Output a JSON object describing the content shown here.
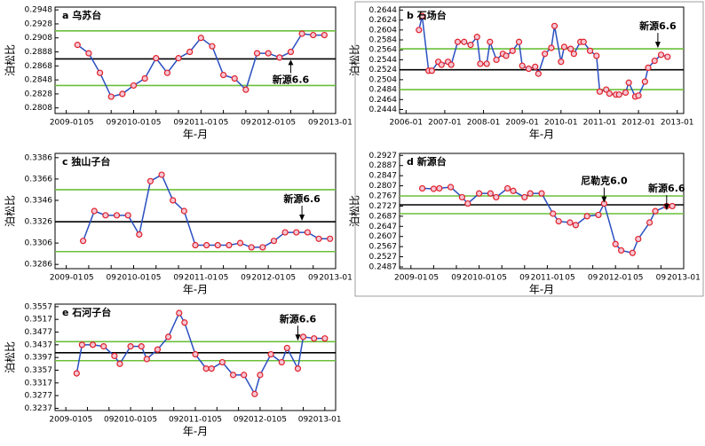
{
  "chart_data": [
    {
      "type": "line",
      "title": "a 乌苏台",
      "ylabel": "泊松比",
      "xlabel": "年-月",
      "x": [
        2,
        4,
        6,
        8,
        10,
        12,
        14,
        16,
        18,
        20,
        22,
        24,
        26,
        28,
        30,
        32,
        34,
        36,
        38,
        40,
        42,
        44,
        46
      ],
      "values": [
        0.2898,
        0.2886,
        0.2858,
        0.2824,
        0.2828,
        0.284,
        0.285,
        0.2879,
        0.2858,
        0.2879,
        0.2888,
        0.2908,
        0.2896,
        0.2855,
        0.285,
        0.2834,
        0.2886,
        0.2886,
        0.288,
        0.2888,
        0.2914,
        0.2912,
        0.2912
      ],
      "xlim": [
        -2,
        48
      ],
      "ylim": [
        0.28,
        0.2952
      ],
      "xticks": [
        {
          "value": 0,
          "label": "2009-01"
        },
        {
          "value": 4,
          "label": "05"
        },
        {
          "value": 8,
          "label": "09"
        },
        {
          "value": 12,
          "label": "2010-01"
        },
        {
          "value": 16,
          "label": "05"
        },
        {
          "value": 20,
          "label": "09"
        },
        {
          "value": 24,
          "label": "2011-01"
        },
        {
          "value": 28,
          "label": "05"
        },
        {
          "value": 32,
          "label": "09"
        },
        {
          "value": 36,
          "label": "2012-01"
        },
        {
          "value": 40,
          "label": "05"
        },
        {
          "value": 44,
          "label": "09"
        },
        {
          "value": 48,
          "label": "2013-01"
        }
      ],
      "yticks": [
        0.2808,
        0.2828,
        0.2848,
        0.2868,
        0.2888,
        0.2908,
        0.2928,
        0.2948
      ],
      "color": "#2a4fc0",
      "marker_color": "#e0202a",
      "hlines": [
        {
          "value": 0.2878,
          "color": "#000000"
        },
        {
          "value": 0.2918,
          "color": "#6cbf3a"
        },
        {
          "value": 0.284,
          "color": "#6cbf3a"
        }
      ],
      "annotations": [
        {
          "text": "新源6.6",
          "x": 40,
          "y": 0.2878,
          "position": "below"
        }
      ]
    },
    {
      "type": "line",
      "title": "b 石场台",
      "ylabel": "泊松比",
      "xlabel": "年-月",
      "x": [
        4,
        5,
        7,
        8,
        10,
        11,
        13,
        14,
        16,
        18,
        20,
        22,
        23,
        25,
        26,
        28,
        30,
        31,
        33,
        35,
        36,
        38,
        40,
        41,
        43,
        45,
        46,
        48,
        49,
        51,
        52,
        54,
        55,
        57,
        59,
        60,
        62,
        63,
        65,
        66,
        68,
        69,
        71,
        72,
        74,
        75,
        77,
        79,
        81
      ],
      "values": [
        0.2604,
        0.2632,
        0.2522,
        0.2522,
        0.254,
        0.2534,
        0.254,
        0.2534,
        0.258,
        0.258,
        0.2574,
        0.259,
        0.2536,
        0.2536,
        0.258,
        0.2544,
        0.2556,
        0.2552,
        0.2562,
        0.258,
        0.2532,
        0.2526,
        0.253,
        0.2516,
        0.2556,
        0.2568,
        0.2612,
        0.254,
        0.257,
        0.2566,
        0.2556,
        0.258,
        0.258,
        0.2562,
        0.2552,
        0.248,
        0.2484,
        0.2476,
        0.2474,
        0.2474,
        0.2478,
        0.2498,
        0.247,
        0.2472,
        0.25,
        0.2528,
        0.2542,
        0.2554,
        0.255
      ],
      "xlim": [
        -2,
        86
      ],
      "ylim": [
        0.2436,
        0.265
      ],
      "xticks": [
        {
          "value": 0,
          "label": "2006-01"
        },
        {
          "value": 12,
          "label": "2007-01"
        },
        {
          "value": 24,
          "label": "2008-01"
        },
        {
          "value": 36,
          "label": "2009-01"
        },
        {
          "value": 48,
          "label": "2010-01"
        },
        {
          "value": 60,
          "label": "2011-01"
        },
        {
          "value": 72,
          "label": "2012-01"
        },
        {
          "value": 84,
          "label": "2013-01"
        }
      ],
      "yticks": [
        0.2444,
        0.2464,
        0.2484,
        0.2504,
        0.2524,
        0.2544,
        0.2564,
        0.2584,
        0.2604,
        0.2624,
        0.2644
      ],
      "color": "#2a4fc0",
      "marker_color": "#e0202a",
      "hlines": [
        {
          "value": 0.2524,
          "color": "#000000"
        },
        {
          "value": 0.2566,
          "color": "#6cbf3a"
        },
        {
          "value": 0.2484,
          "color": "#6cbf3a"
        }
      ],
      "annotations": [
        {
          "text": "新源6.6",
          "x": 78,
          "y": 0.2566,
          "position": "above"
        }
      ]
    },
    {
      "type": "line",
      "title": "c 独山子台",
      "ylabel": "泊松比",
      "xlabel": "年-月",
      "x": [
        3,
        5,
        7,
        9,
        11,
        13,
        15,
        17,
        19,
        21,
        23,
        25,
        27,
        29,
        31,
        33,
        35,
        37,
        39,
        41,
        43,
        45,
        47
      ],
      "values": [
        0.3308,
        0.3336,
        0.3332,
        0.3332,
        0.3332,
        0.3314,
        0.3364,
        0.337,
        0.3346,
        0.3336,
        0.3304,
        0.3304,
        0.3304,
        0.3304,
        0.3306,
        0.3302,
        0.3302,
        0.3308,
        0.3316,
        0.3316,
        0.3316,
        0.331,
        0.331
      ],
      "xlim": [
        -2,
        48
      ],
      "ylim": [
        0.3282,
        0.339
      ],
      "xticks": [
        {
          "value": 0,
          "label": "2009-01"
        },
        {
          "value": 4,
          "label": "05"
        },
        {
          "value": 8,
          "label": "09"
        },
        {
          "value": 12,
          "label": "2010-01"
        },
        {
          "value": 16,
          "label": "05"
        },
        {
          "value": 20,
          "label": "09"
        },
        {
          "value": 24,
          "label": "2011-01"
        },
        {
          "value": 28,
          "label": "05"
        },
        {
          "value": 32,
          "label": "09"
        },
        {
          "value": 36,
          "label": "2012-01"
        },
        {
          "value": 40,
          "label": "05"
        },
        {
          "value": 44,
          "label": "09"
        },
        {
          "value": 48,
          "label": "2013-01"
        }
      ],
      "yticks": [
        0.3286,
        0.3306,
        0.3326,
        0.3346,
        0.3366,
        0.3386
      ],
      "color": "#2a4fc0",
      "marker_color": "#e0202a",
      "hlines": [
        {
          "value": 0.3326,
          "color": "#000000"
        },
        {
          "value": 0.3356,
          "color": "#6cbf3a"
        },
        {
          "value": 0.3298,
          "color": "#6cbf3a"
        }
      ],
      "annotations": [
        {
          "text": "新源6.6",
          "x": 42,
          "y": 0.3326,
          "position": "above"
        }
      ]
    },
    {
      "type": "line",
      "title": "d 新源台",
      "ylabel": "泊松比",
      "xlabel": "年-月",
      "x": [
        2,
        4,
        5,
        7,
        9,
        10,
        12,
        14,
        15,
        17,
        18,
        20,
        21,
        23,
        25,
        26,
        28,
        29,
        31,
        33,
        34,
        36,
        37,
        39,
        40,
        42,
        43,
        45,
        46
      ],
      "values": [
        0.2797,
        0.2795,
        0.2797,
        0.2802,
        0.2762,
        0.2737,
        0.2777,
        0.2777,
        0.2762,
        0.2797,
        0.2787,
        0.2762,
        0.2777,
        0.2777,
        0.2697,
        0.2667,
        0.2662,
        0.2652,
        0.2687,
        0.2692,
        0.2737,
        0.2577,
        0.2552,
        0.2542,
        0.2597,
        0.2662,
        0.2707,
        0.2727,
        0.2727
      ],
      "xlim": [
        -2,
        48
      ],
      "ylim": [
        0.248,
        0.2935
      ],
      "xticks": [
        {
          "value": 0,
          "label": "2009-01"
        },
        {
          "value": 4,
          "label": "05"
        },
        {
          "value": 8,
          "label": "09"
        },
        {
          "value": 12,
          "label": "2010-01"
        },
        {
          "value": 16,
          "label": "05"
        },
        {
          "value": 20,
          "label": "09"
        },
        {
          "value": 24,
          "label": "2011-01"
        },
        {
          "value": 28,
          "label": "05"
        },
        {
          "value": 32,
          "label": "09"
        },
        {
          "value": 36,
          "label": "2012-01"
        },
        {
          "value": 40,
          "label": "05"
        },
        {
          "value": 44,
          "label": "09"
        },
        {
          "value": 48,
          "label": "2013-01"
        }
      ],
      "yticks": [
        0.2487,
        0.2527,
        0.2567,
        0.2607,
        0.2647,
        0.2687,
        0.2727,
        0.2767,
        0.2807,
        0.2847,
        0.2887,
        0.2927
      ],
      "color": "#2a4fc0",
      "marker_color": "#e0202a",
      "hlines": [
        {
          "value": 0.2732,
          "color": "#000000"
        },
        {
          "value": 0.2767,
          "color": "#6cbf3a"
        },
        {
          "value": 0.2697,
          "color": "#6cbf3a"
        }
      ],
      "annotations": [
        {
          "text": "尼勒克6.0",
          "x": 34,
          "y": 0.2737,
          "position": "above"
        },
        {
          "text": "新源6.6",
          "x": 45,
          "y": 0.2707,
          "position": "above"
        }
      ]
    },
    {
      "type": "line",
      "title": "e 石河子台",
      "ylabel": "泊松比",
      "xlabel": "年-月",
      "x": [
        2,
        3,
        5,
        7,
        9,
        10,
        12,
        14,
        15,
        17,
        19,
        21,
        22,
        24,
        26,
        27,
        29,
        31,
        33,
        35,
        36,
        38,
        40,
        41,
        43,
        44,
        46,
        48
      ],
      "values": [
        0.3347,
        0.3437,
        0.3437,
        0.3432,
        0.3402,
        0.3377,
        0.3432,
        0.3432,
        0.3392,
        0.3422,
        0.3462,
        0.3537,
        0.3507,
        0.3407,
        0.3362,
        0.3362,
        0.3382,
        0.3342,
        0.3342,
        0.3282,
        0.3342,
        0.3407,
        0.3382,
        0.3427,
        0.3362,
        0.3462,
        0.3457,
        0.3457
      ],
      "xlim": [
        -2,
        50
      ],
      "ylim": [
        0.323,
        0.3565
      ],
      "xticks": [
        {
          "value": 0,
          "label": "2009-01"
        },
        {
          "value": 4,
          "label": "05"
        },
        {
          "value": 8,
          "label": "09"
        },
        {
          "value": 12,
          "label": "2010-01"
        },
        {
          "value": 16,
          "label": "05"
        },
        {
          "value": 20,
          "label": "09"
        },
        {
          "value": 24,
          "label": "2011-01"
        },
        {
          "value": 28,
          "label": "05"
        },
        {
          "value": 32,
          "label": "09"
        },
        {
          "value": 36,
          "label": "2012-01"
        },
        {
          "value": 40,
          "label": "05"
        },
        {
          "value": 44,
          "label": "09"
        },
        {
          "value": 48,
          "label": "2013-01"
        }
      ],
      "yticks": [
        0.3237,
        0.3277,
        0.3317,
        0.3357,
        0.3397,
        0.3437,
        0.3477,
        0.3517,
        0.3557
      ],
      "color": "#2a4fc0",
      "marker_color": "#e0202a",
      "hlines": [
        {
          "value": 0.3412,
          "color": "#000000"
        },
        {
          "value": 0.3447,
          "color": "#6cbf3a"
        },
        {
          "value": 0.3387,
          "color": "#6cbf3a"
        }
      ],
      "annotations": [
        {
          "text": "新源6.6",
          "x": 43,
          "y": 0.3447,
          "position": "above"
        }
      ]
    }
  ]
}
